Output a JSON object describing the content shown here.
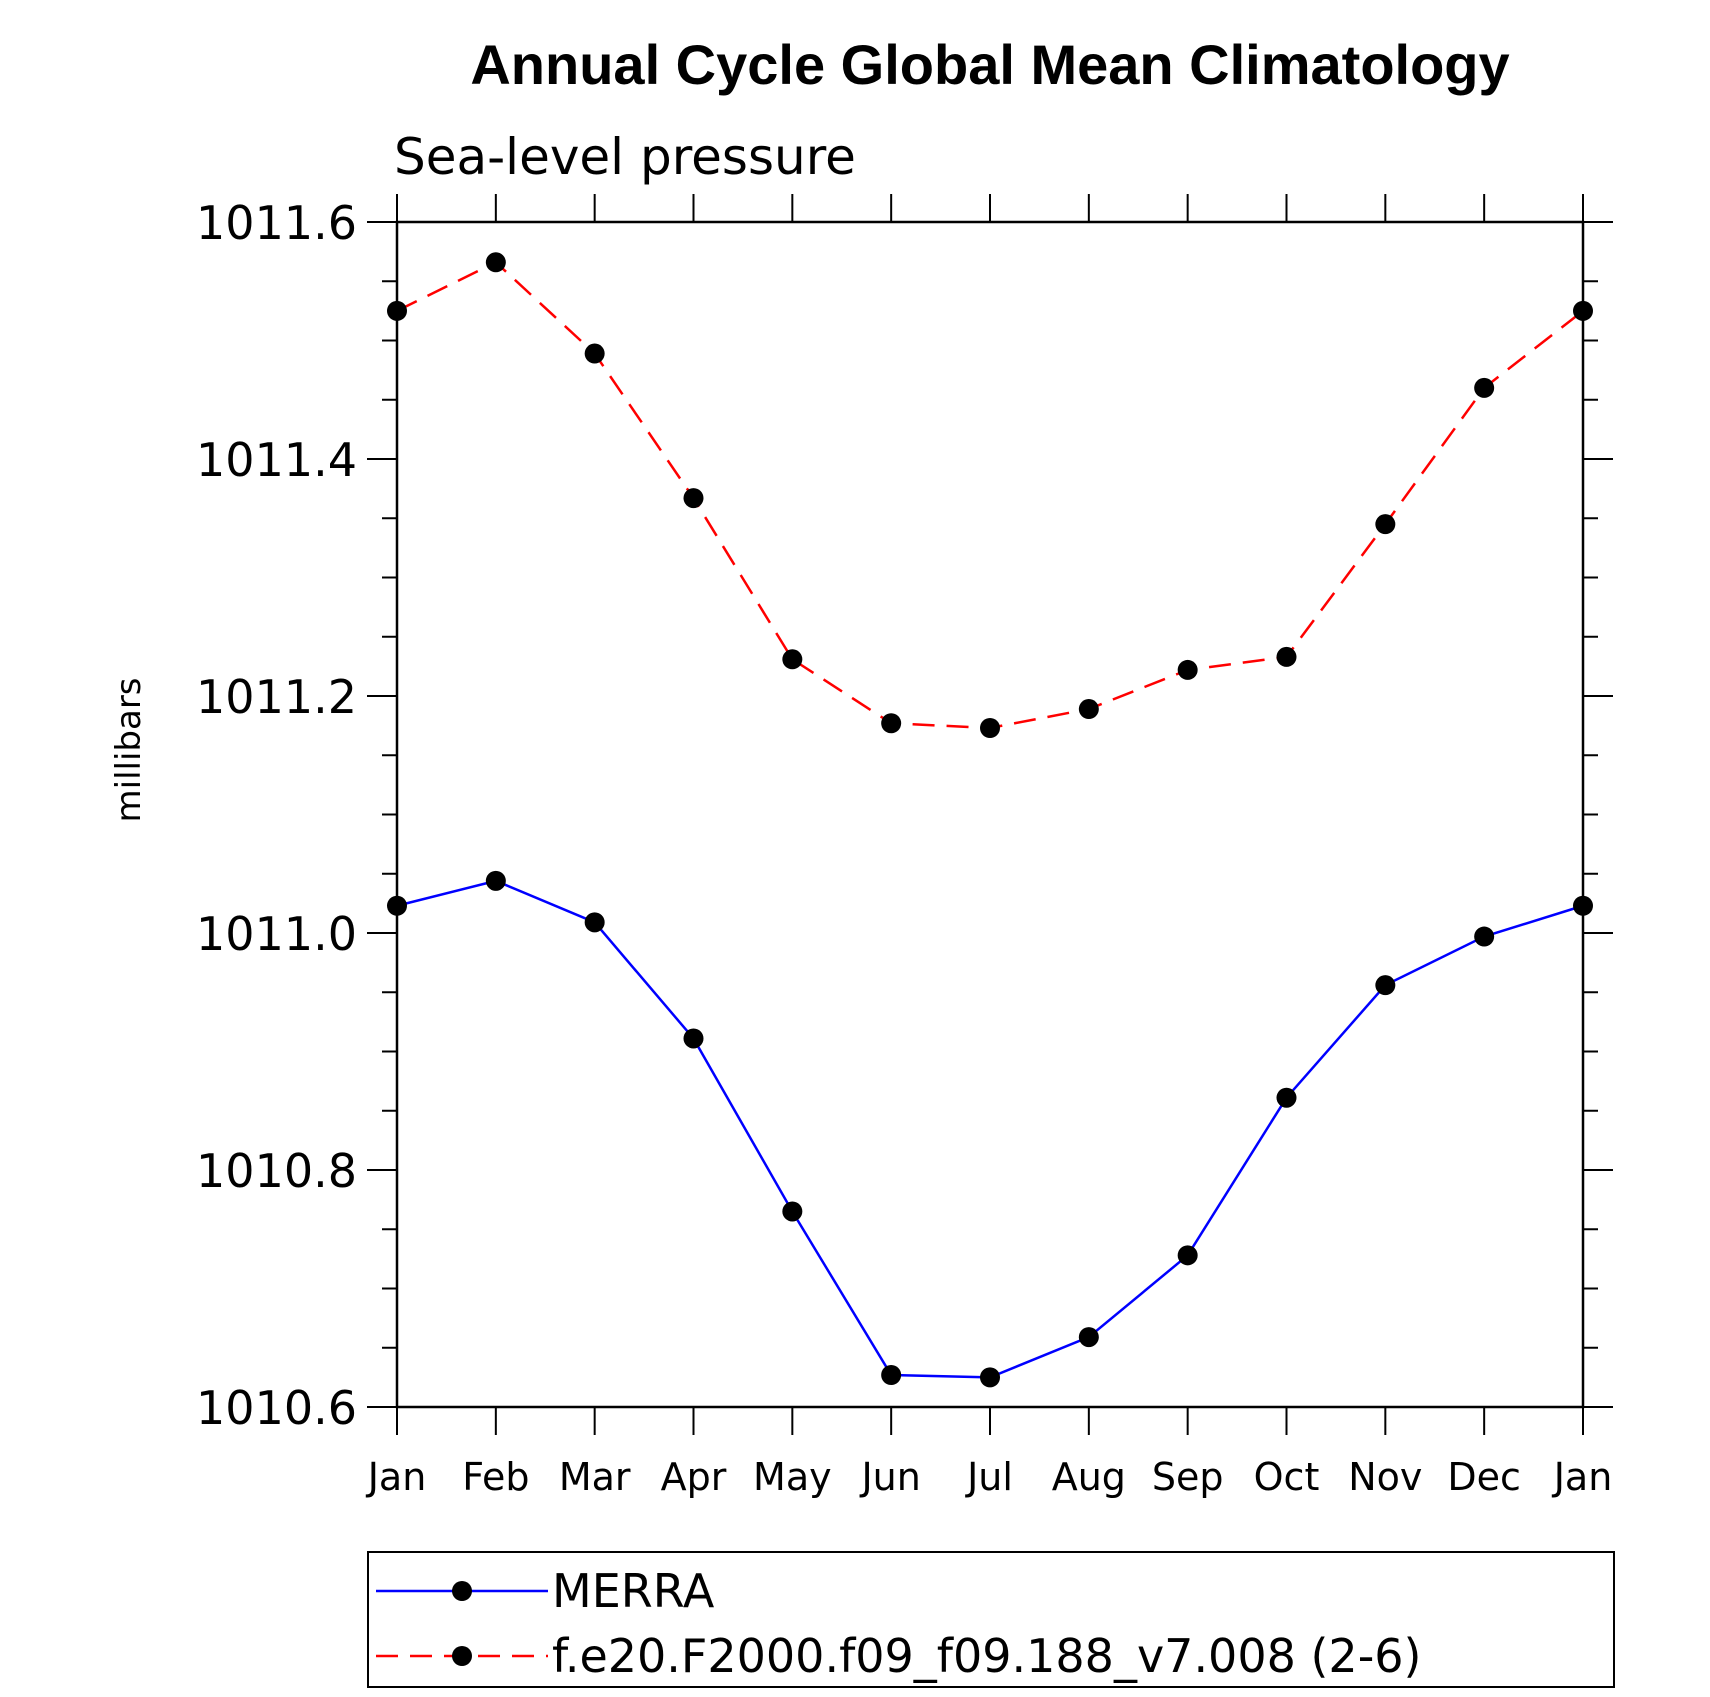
{
  "chart_data": {
    "type": "line",
    "title": "Annual Cycle Global Mean Climatology",
    "subtitle": "Sea-level pressure",
    "xlabel": "",
    "ylabel": "millibars",
    "categories": [
      "Jan",
      "Feb",
      "Mar",
      "Apr",
      "May",
      "Jun",
      "Jul",
      "Aug",
      "Sep",
      "Oct",
      "Nov",
      "Dec",
      "Jan"
    ],
    "ylim": [
      1010.6,
      1011.6
    ],
    "yticks": [
      "1010.6",
      "1010.8",
      "1011.0",
      "1011.2",
      "1011.4",
      "1011.6"
    ],
    "grid": false,
    "legend_position": "bottom",
    "series": [
      {
        "name": "MERRA",
        "color": "#0000ff",
        "line_style": "solid",
        "marker": "filled-circle",
        "values": [
          1011.023,
          1011.044,
          1011.009,
          1010.911,
          1010.765,
          1010.627,
          1010.625,
          1010.659,
          1010.728,
          1010.861,
          1010.956,
          1010.997,
          1011.023
        ]
      },
      {
        "name": "f.e20.F2000.f09_f09.188_v7.008 (2-6)",
        "color": "#ff0000",
        "line_style": "dashed",
        "marker": "filled-circle",
        "values": [
          1011.525,
          1011.566,
          1011.489,
          1011.367,
          1011.231,
          1011.177,
          1011.173,
          1011.189,
          1011.222,
          1011.233,
          1011.345,
          1011.46,
          1011.525
        ]
      }
    ]
  }
}
